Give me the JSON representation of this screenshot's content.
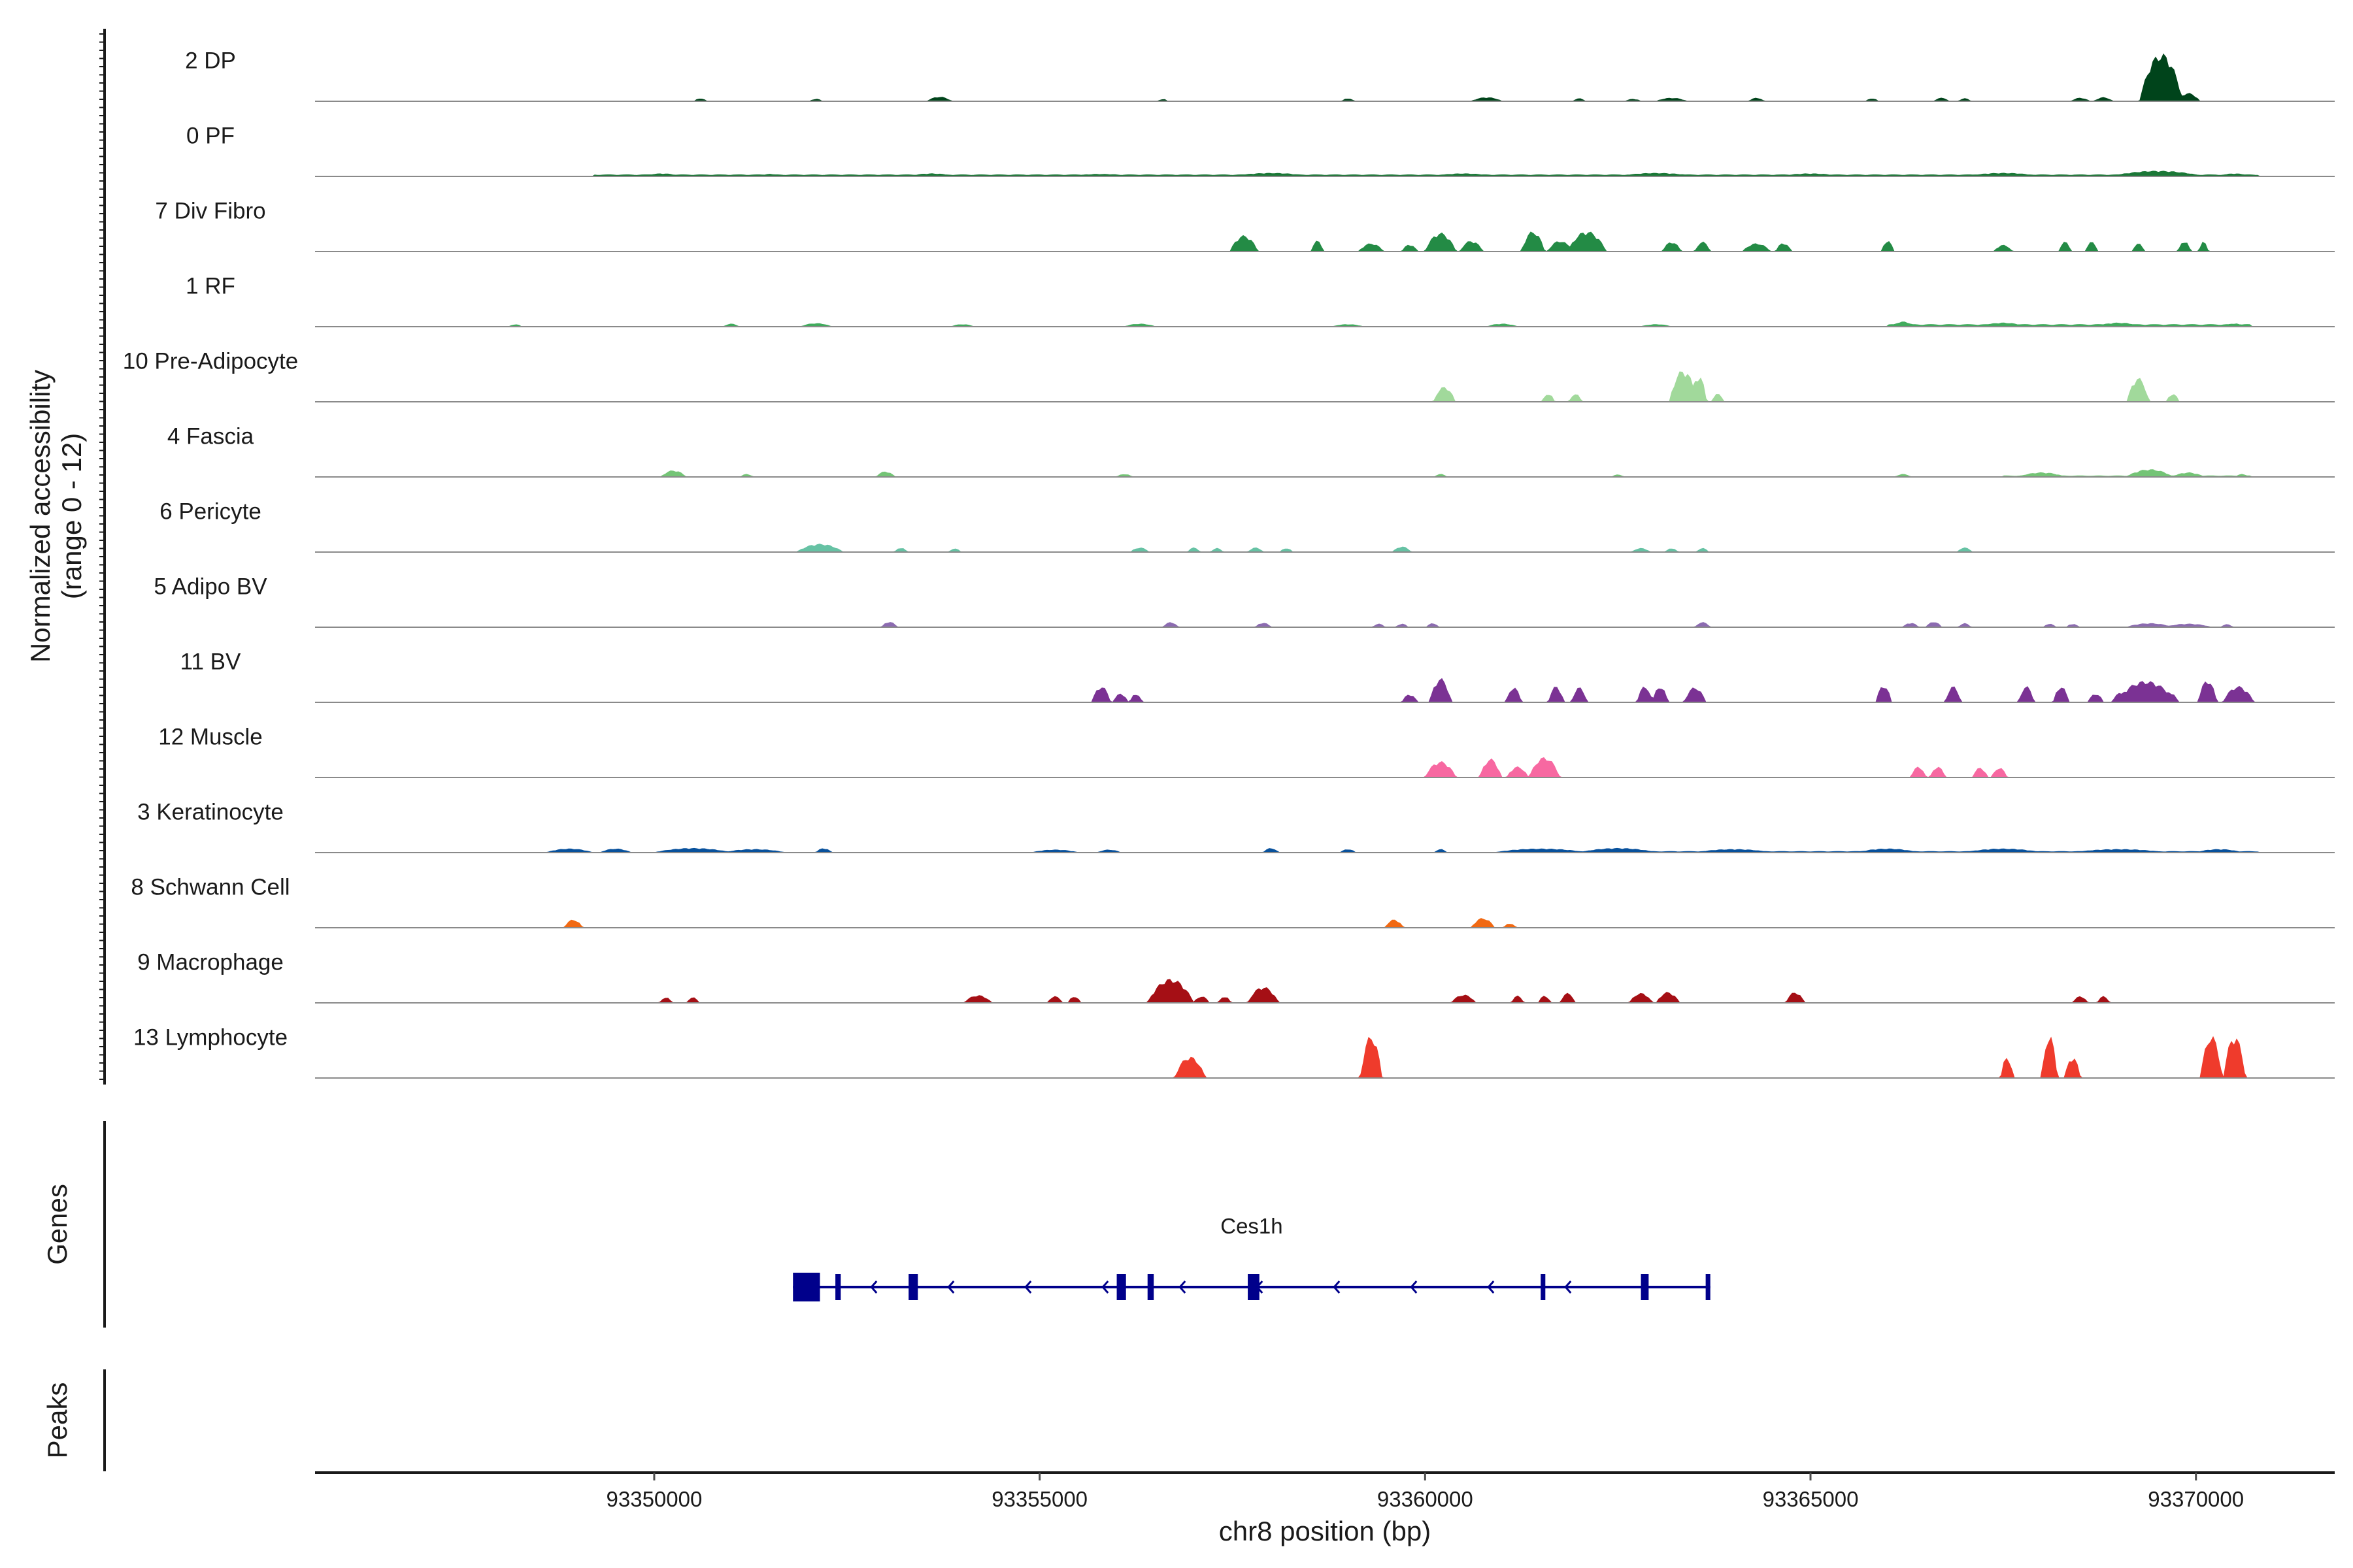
{
  "chart_data": {
    "type": "area",
    "chart_kind": "genome coverage tracks",
    "xlabel": "chr8 position (bp)",
    "xlim": [
      93345600,
      93371800
    ],
    "xticks": [
      93350000,
      93355000,
      93360000,
      93365000,
      93370000
    ],
    "xtick_labels": [
      "93350000",
      "93355000",
      "93360000",
      "93365000",
      "93370000"
    ],
    "ylabel_line1": "Normalized accessibility",
    "ylabel_line2": "(range 0 - 12)",
    "ylim": [
      0,
      12
    ],
    "tracks": [
      {
        "name": "2 DP",
        "color": "#00441B",
        "peaks": [
          [
            93350600,
            0.5,
            80
          ],
          [
            93352100,
            0.4,
            80
          ],
          [
            93353700,
            0.8,
            160
          ],
          [
            93356600,
            0.4,
            60
          ],
          [
            93359000,
            0.5,
            80
          ],
          [
            93360800,
            0.7,
            200
          ],
          [
            93362000,
            0.5,
            80
          ],
          [
            93362700,
            0.4,
            100
          ],
          [
            93363200,
            0.6,
            200
          ],
          [
            93364300,
            0.6,
            100
          ],
          [
            93365800,
            0.5,
            80
          ],
          [
            93366700,
            0.6,
            100
          ],
          [
            93367000,
            0.5,
            80
          ],
          [
            93368500,
            0.6,
            120
          ],
          [
            93368800,
            0.7,
            120
          ],
          [
            93369550,
            9,
            280
          ],
          [
            93369900,
            1.5,
            150
          ]
        ],
        "base": 0.15
      },
      {
        "name": "0 PF",
        "color": "#1B7837",
        "peaks": [
          [
            93350100,
            0.5,
            250
          ],
          [
            93351500,
            0.4,
            150
          ],
          [
            93353600,
            0.5,
            300
          ],
          [
            93355800,
            0.4,
            400
          ],
          [
            93358000,
            0.6,
            500
          ],
          [
            93360500,
            0.5,
            400
          ],
          [
            93363000,
            0.6,
            500
          ],
          [
            93365000,
            0.5,
            400
          ],
          [
            93367500,
            0.6,
            500
          ],
          [
            93369500,
            1.0,
            600
          ],
          [
            93370500,
            0.5,
            200
          ]
        ],
        "base": 0.3,
        "base_range": [
          93349200,
          93370800
        ]
      },
      {
        "name": "7 Div Fibro",
        "color": "#238B45",
        "peaks": [
          [
            93357650,
            3.0,
            180
          ],
          [
            93358600,
            2.0,
            80
          ],
          [
            93359300,
            1.5,
            160
          ],
          [
            93359800,
            1.3,
            100
          ],
          [
            93360200,
            3.5,
            200
          ],
          [
            93360600,
            2.0,
            150
          ],
          [
            93361400,
            3.8,
            150
          ],
          [
            93361750,
            2.0,
            160
          ],
          [
            93362100,
            3.8,
            250
          ],
          [
            93363200,
            1.8,
            120
          ],
          [
            93363600,
            1.8,
            100
          ],
          [
            93364300,
            1.5,
            180
          ],
          [
            93364650,
            1.6,
            100
          ],
          [
            93366000,
            2.0,
            80
          ],
          [
            93367500,
            1.2,
            120
          ],
          [
            93368300,
            1.8,
            80
          ],
          [
            93368650,
            1.8,
            80
          ],
          [
            93369250,
            1.5,
            80
          ],
          [
            93369850,
            2.0,
            80
          ],
          [
            93370100,
            1.8,
            60
          ]
        ]
      },
      {
        "name": "1 RF",
        "color": "#41AB5D",
        "peaks": [
          [
            93348200,
            0.4,
            80
          ],
          [
            93351000,
            0.5,
            100
          ],
          [
            93352100,
            0.6,
            200
          ],
          [
            93354000,
            0.4,
            150
          ],
          [
            93356300,
            0.5,
            200
          ],
          [
            93359000,
            0.4,
            200
          ],
          [
            93361000,
            0.5,
            200
          ],
          [
            93363000,
            0.4,
            200
          ],
          [
            93366200,
            0.9,
            150
          ],
          [
            93367500,
            0.7,
            300
          ],
          [
            93369000,
            0.7,
            300
          ],
          [
            93370500,
            0.6,
            100
          ]
        ],
        "base": 0.4,
        "base_range": [
          93366000,
          93370700
        ]
      },
      {
        "name": "10 Pre-Adipocyte",
        "color": "#A1D99B",
        "peaks": [
          [
            93360250,
            2.8,
            140
          ],
          [
            93361600,
            1.5,
            80
          ],
          [
            93361950,
            1.5,
            80
          ],
          [
            93363350,
            6.0,
            180
          ],
          [
            93363550,
            5.0,
            100
          ],
          [
            93363800,
            1.5,
            80
          ],
          [
            93369250,
            4.5,
            140
          ],
          [
            93369700,
            1.5,
            80
          ]
        ]
      },
      {
        "name": "4 Fascia",
        "color": "#74C476",
        "peaks": [
          [
            93350250,
            1.2,
            160
          ],
          [
            93351200,
            0.5,
            80
          ],
          [
            93353000,
            1.0,
            120
          ],
          [
            93356100,
            0.5,
            100
          ],
          [
            93360200,
            0.5,
            80
          ],
          [
            93362500,
            0.4,
            80
          ],
          [
            93366200,
            0.5,
            100
          ],
          [
            93368000,
            0.8,
            300
          ],
          [
            93369400,
            1.4,
            300
          ],
          [
            93369900,
            0.8,
            200
          ],
          [
            93370600,
            0.5,
            80
          ]
        ],
        "base": 0.2,
        "base_range": [
          93367500,
          93370700
        ]
      },
      {
        "name": "6 Pericyte",
        "color": "#66C2A4",
        "peaks": [
          [
            93352150,
            1.5,
            300
          ],
          [
            93353200,
            0.8,
            80
          ],
          [
            93353900,
            0.6,
            80
          ],
          [
            93356300,
            0.8,
            120
          ],
          [
            93357000,
            0.8,
            80
          ],
          [
            93357300,
            0.7,
            80
          ],
          [
            93357800,
            0.8,
            100
          ],
          [
            93358200,
            0.7,
            80
          ],
          [
            93359700,
            1.0,
            120
          ],
          [
            93362800,
            0.7,
            120
          ],
          [
            93363200,
            0.7,
            80
          ],
          [
            93363600,
            0.7,
            80
          ],
          [
            93367000,
            0.8,
            100
          ]
        ]
      },
      {
        "name": "5 Adipo BV",
        "color": "#8C6BB1",
        "peaks": [
          [
            93353050,
            1.0,
            100
          ],
          [
            93356700,
            0.9,
            100
          ],
          [
            93357900,
            0.8,
            100
          ],
          [
            93359400,
            0.6,
            80
          ],
          [
            93359700,
            0.6,
            80
          ],
          [
            93360100,
            0.7,
            80
          ],
          [
            93363600,
            0.9,
            100
          ],
          [
            93366300,
            0.8,
            100
          ],
          [
            93366600,
            1.0,
            100
          ],
          [
            93367000,
            0.7,
            80
          ],
          [
            93368100,
            0.6,
            80
          ],
          [
            93368400,
            0.6,
            80
          ],
          [
            93369400,
            0.7,
            300
          ],
          [
            93369900,
            0.6,
            300
          ],
          [
            93370400,
            0.5,
            80
          ]
        ]
      },
      {
        "name": "11 BV",
        "color": "#7B3294",
        "peaks": [
          [
            93355800,
            3.0,
            120
          ],
          [
            93356050,
            1.6,
            100
          ],
          [
            93356250,
            1.6,
            80
          ],
          [
            93359800,
            1.5,
            100
          ],
          [
            93360200,
            4.5,
            140
          ],
          [
            93361150,
            2.8,
            100
          ],
          [
            93361700,
            3.0,
            100
          ],
          [
            93362000,
            2.8,
            100
          ],
          [
            93362850,
            3.0,
            100
          ],
          [
            93363050,
            3.0,
            100
          ],
          [
            93363500,
            2.8,
            140
          ],
          [
            93365950,
            3.2,
            100
          ],
          [
            93366850,
            3.0,
            100
          ],
          [
            93367800,
            3.0,
            100
          ],
          [
            93368250,
            3.0,
            100
          ],
          [
            93368700,
            1.6,
            100
          ],
          [
            93369050,
            2.0,
            140
          ],
          [
            93369350,
            4.0,
            400
          ],
          [
            93369650,
            2.0,
            120
          ],
          [
            93370150,
            4.2,
            120
          ],
          [
            93370550,
            3.0,
            200
          ]
        ]
      },
      {
        "name": "12 Muscle",
        "color": "#F768A1",
        "peaks": [
          [
            93360200,
            3.0,
            200
          ],
          [
            93360850,
            3.5,
            140
          ],
          [
            93361200,
            2.0,
            140
          ],
          [
            93361550,
            3.8,
            200
          ],
          [
            93366400,
            2.0,
            100
          ],
          [
            93366650,
            2.0,
            100
          ],
          [
            93367200,
            1.8,
            100
          ],
          [
            93367450,
            1.8,
            100
          ]
        ]
      },
      {
        "name": "3 Keratinocyte",
        "color": "#08519C",
        "peaks": [
          [
            93348900,
            0.7,
            300
          ],
          [
            93349500,
            0.7,
            200
          ],
          [
            93350500,
            0.8,
            500
          ],
          [
            93351300,
            0.6,
            400
          ],
          [
            93352200,
            0.8,
            100
          ],
          [
            93355200,
            0.5,
            300
          ],
          [
            93355900,
            0.5,
            150
          ],
          [
            93358000,
            0.8,
            100
          ],
          [
            93359000,
            0.6,
            100
          ],
          [
            93360200,
            0.6,
            80
          ],
          [
            93361500,
            0.7,
            600
          ],
          [
            93362500,
            0.8,
            500
          ],
          [
            93364000,
            0.6,
            500
          ],
          [
            93366000,
            0.7,
            400
          ],
          [
            93367500,
            0.7,
            500
          ],
          [
            93369000,
            0.6,
            600
          ],
          [
            93370300,
            0.6,
            300
          ]
        ],
        "base": 0.2,
        "base_range": [
          93361000,
          93370800
        ]
      },
      {
        "name": "8 Schwann Cell",
        "color": "#F16913",
        "peaks": [
          [
            93348950,
            1.5,
            120
          ],
          [
            93359600,
            1.5,
            120
          ],
          [
            93360750,
            1.8,
            150
          ],
          [
            93361100,
            0.8,
            80
          ]
        ]
      },
      {
        "name": "9 Macrophage",
        "color": "#A50F15",
        "peaks": [
          [
            93350150,
            1.0,
            80
          ],
          [
            93350500,
            1.0,
            80
          ],
          [
            93354200,
            1.4,
            180
          ],
          [
            93355200,
            1.2,
            100
          ],
          [
            93355450,
            1.2,
            80
          ],
          [
            93356700,
            4.5,
            300
          ],
          [
            93357100,
            1.2,
            100
          ],
          [
            93357400,
            1.2,
            80
          ],
          [
            93357900,
            3.0,
            200
          ],
          [
            93360500,
            1.5,
            160
          ],
          [
            93361200,
            1.3,
            80
          ],
          [
            93361550,
            1.3,
            80
          ],
          [
            93361850,
            1.8,
            100
          ],
          [
            93362800,
            1.8,
            150
          ],
          [
            93363150,
            2.0,
            150
          ],
          [
            93364800,
            2.0,
            120
          ],
          [
            93368500,
            1.2,
            100
          ],
          [
            93368800,
            1.2,
            80
          ]
        ]
      },
      {
        "name": "13 Lymphocyte",
        "color": "#EF3B2C",
        "peaks": [
          [
            93356950,
            4.0,
            200
          ],
          [
            93359300,
            8.0,
            140
          ],
          [
            93367550,
            4.0,
            80
          ],
          [
            93368100,
            8.0,
            100
          ],
          [
            93368400,
            4.0,
            100
          ],
          [
            93370200,
            8.0,
            140
          ],
          [
            93370500,
            8.0,
            140
          ]
        ]
      }
    ],
    "genes": [
      {
        "name": "Ces1h",
        "color": "#00008B",
        "start": 93351800,
        "end": 93363700,
        "strand": "-",
        "exons": [
          [
            93351800,
            93352150
          ],
          [
            93352350,
            93352420
          ],
          [
            93353300,
            93353420
          ],
          [
            93356000,
            93356120
          ],
          [
            93356400,
            93356480
          ],
          [
            93357700,
            93357850
          ],
          [
            93361500,
            93361560
          ],
          [
            93362800,
            93362900
          ],
          [
            93363640,
            93363700
          ]
        ]
      }
    ],
    "panels": {
      "genes_label": "Genes",
      "peaks_label": "Peaks"
    }
  }
}
